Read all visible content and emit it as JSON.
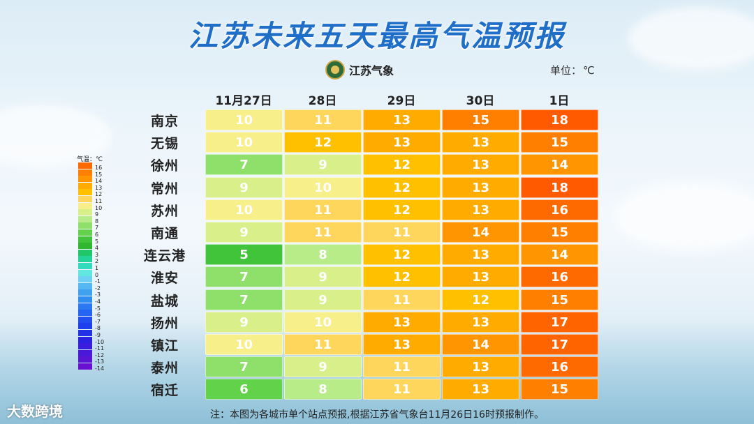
{
  "title": "江苏未来五天最高气温预报",
  "logo_text": "江苏气象",
  "unit_label": "单位：",
  "unit_value": "℃",
  "legend_title": "气温：℃",
  "note": "注：本图为各城市单个站点预报,根据江苏省气象台11月26日16时预报制作。",
  "brand": "大数跨境",
  "chart_data": {
    "type": "table",
    "columns": [
      "11月27日",
      "28日",
      "29日",
      "30日",
      "1日"
    ],
    "rows": [
      {
        "city": "南京",
        "values": [
          10,
          11,
          13,
          15,
          18
        ]
      },
      {
        "city": "无锡",
        "values": [
          10,
          12,
          13,
          13,
          15
        ]
      },
      {
        "city": "徐州",
        "values": [
          7,
          9,
          12,
          13,
          14
        ]
      },
      {
        "city": "常州",
        "values": [
          9,
          10,
          12,
          13,
          18
        ]
      },
      {
        "city": "苏州",
        "values": [
          10,
          11,
          12,
          13,
          16
        ]
      },
      {
        "city": "南通",
        "values": [
          9,
          11,
          11,
          14,
          15
        ]
      },
      {
        "city": "连云港",
        "values": [
          5,
          8,
          12,
          13,
          14
        ]
      },
      {
        "city": "淮安",
        "values": [
          7,
          9,
          12,
          13,
          16
        ]
      },
      {
        "city": "盐城",
        "values": [
          7,
          9,
          11,
          12,
          15
        ]
      },
      {
        "city": "扬州",
        "values": [
          9,
          10,
          13,
          13,
          17
        ]
      },
      {
        "city": "镇江",
        "values": [
          10,
          11,
          13,
          14,
          17
        ]
      },
      {
        "city": "泰州",
        "values": [
          7,
          9,
          11,
          13,
          16
        ]
      },
      {
        "city": "宿迁",
        "values": [
          6,
          8,
          11,
          13,
          15
        ]
      }
    ],
    "legend": [
      {
        "label": "16",
        "color": "#ff6a00"
      },
      {
        "label": "15",
        "color": "#ff8000"
      },
      {
        "label": "14",
        "color": "#ff9500"
      },
      {
        "label": "13",
        "color": "#ffab00"
      },
      {
        "label": "12",
        "color": "#ffc000"
      },
      {
        "label": "11",
        "color": "#ffd65c"
      },
      {
        "label": "10",
        "color": "#f7f08a"
      },
      {
        "label": "9",
        "color": "#d9f08a"
      },
      {
        "label": "8",
        "color": "#b8ec88"
      },
      {
        "label": "7",
        "color": "#8ee06a"
      },
      {
        "label": "6",
        "color": "#62d24a"
      },
      {
        "label": "5",
        "color": "#42c43a"
      },
      {
        "label": "4",
        "color": "#2fb82f"
      },
      {
        "label": "3",
        "color": "#20c86a"
      },
      {
        "label": "2",
        "color": "#22d49a"
      },
      {
        "label": "1",
        "color": "#30dcbc"
      },
      {
        "label": "0",
        "color": "#60e8e0"
      },
      {
        "label": "-1",
        "color": "#6fd0f6"
      },
      {
        "label": "-2",
        "color": "#55b8f2"
      },
      {
        "label": "-3",
        "color": "#40a2ee"
      },
      {
        "label": "-4",
        "color": "#2f8ef0"
      },
      {
        "label": "-5",
        "color": "#2a78f2"
      },
      {
        "label": "-6",
        "color": "#2563f2"
      },
      {
        "label": "-7",
        "color": "#2250f0"
      },
      {
        "label": "-8",
        "color": "#1f3eee"
      },
      {
        "label": "-9",
        "color": "#2230e6"
      },
      {
        "label": "-10",
        "color": "#2a22e0"
      },
      {
        "label": "-11",
        "color": "#3a1cdc"
      },
      {
        "label": "-12",
        "color": "#4a18d8"
      },
      {
        "label": "-13",
        "color": "#5a14d4"
      },
      {
        "label": "-14",
        "color": "#6a10d0"
      }
    ]
  }
}
